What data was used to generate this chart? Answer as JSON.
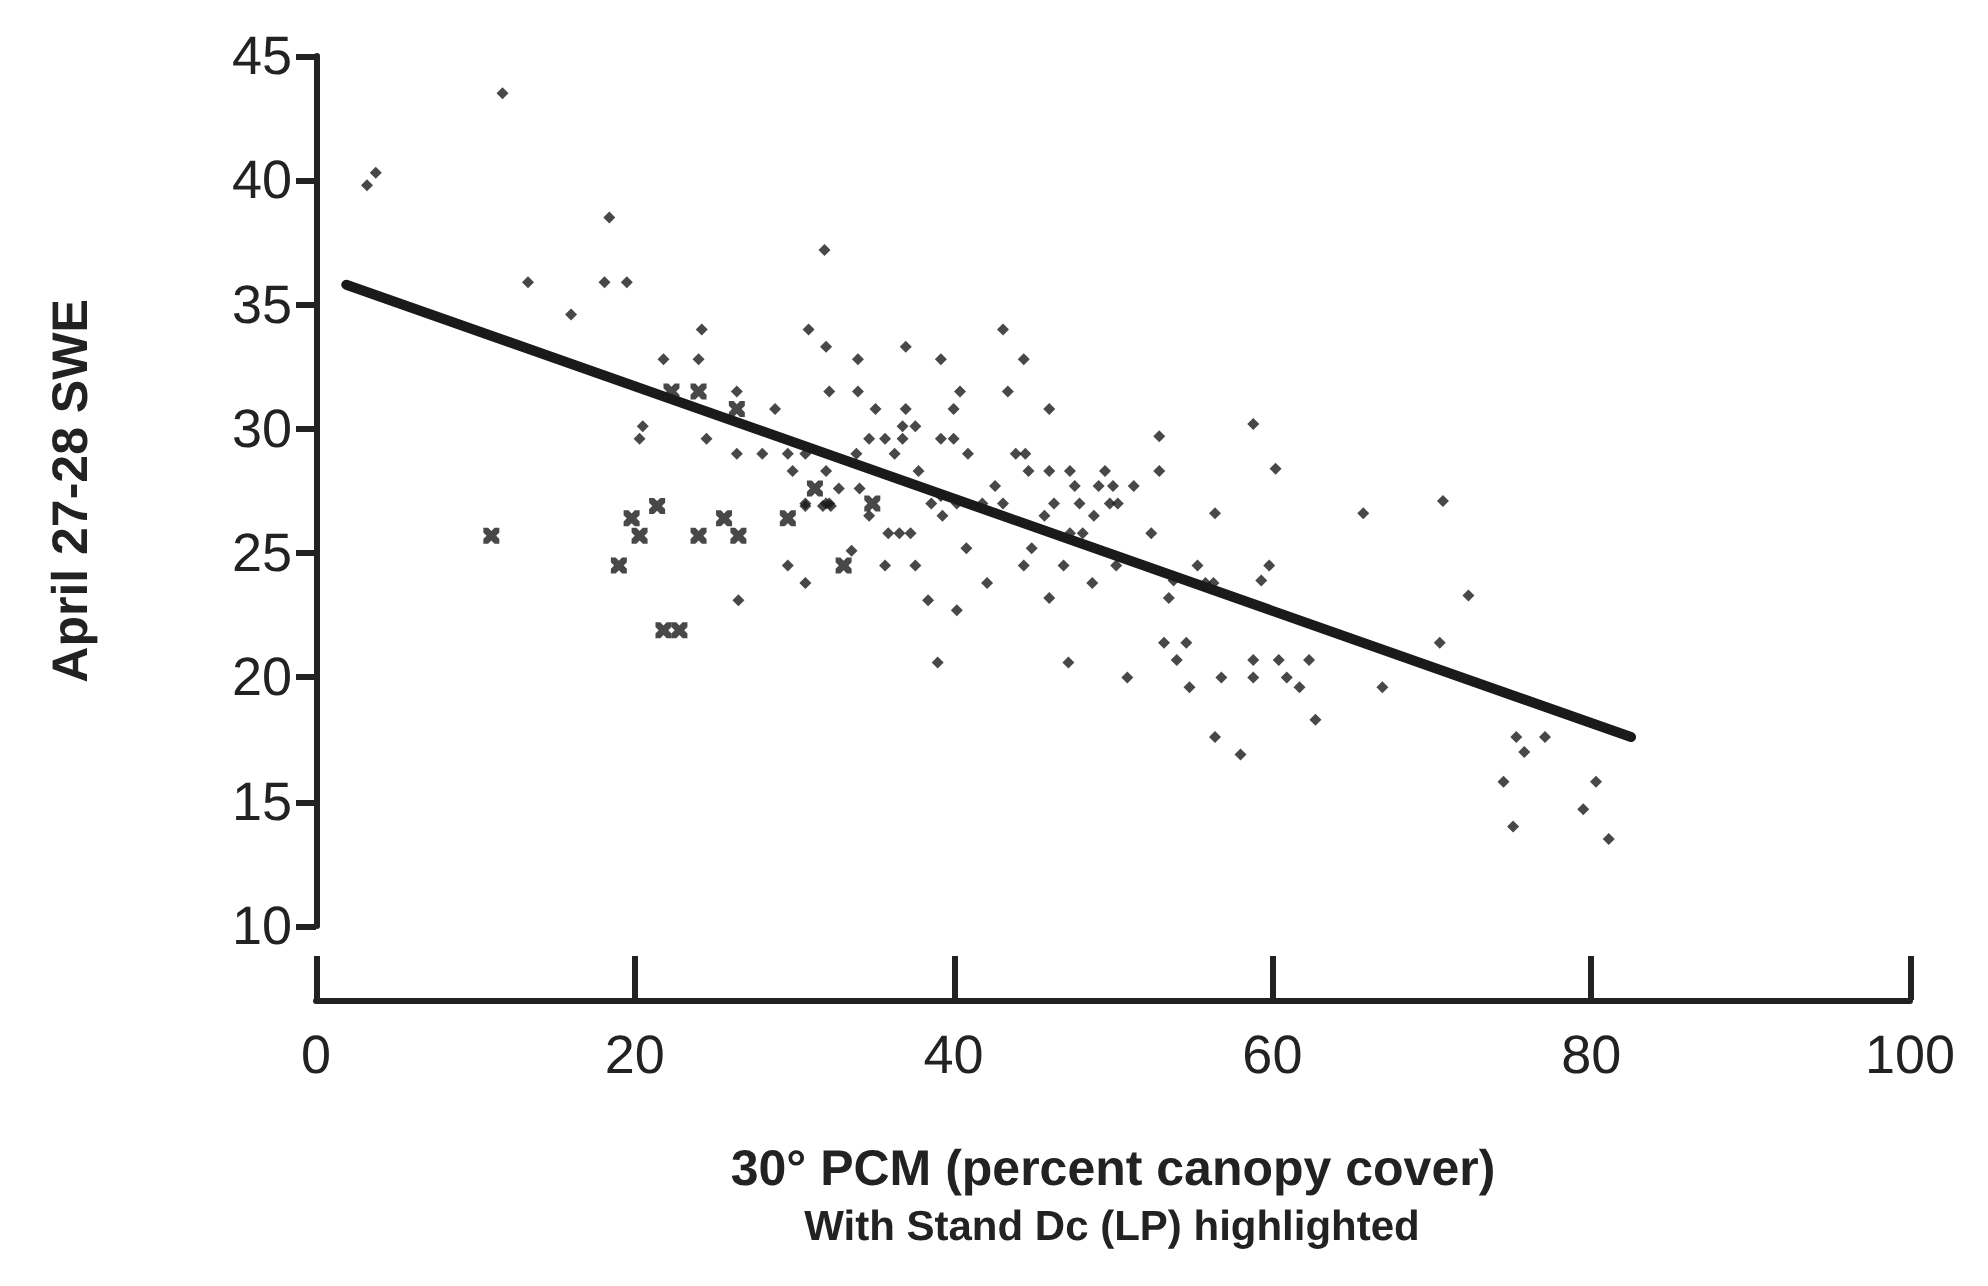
{
  "chart_data": {
    "type": "scatter",
    "xlabel": "30° PCM (percent canopy cover)",
    "ylabel": "April 27-28 SWE",
    "annotations": [
      "With Stand Dc (LP) highlighted"
    ],
    "xlim": [
      0,
      100
    ],
    "xticks": [
      0,
      20,
      40,
      60,
      80,
      100
    ],
    "ylim": [
      10,
      45
    ],
    "yticks": [
      10,
      15,
      20,
      25,
      30,
      35,
      40,
      45
    ],
    "grid": false,
    "series": [
      {
        "marker": "diamond",
        "color": "#1a1a1a",
        "x": [
          11.7,
          3.2,
          3.75,
          18.4,
          13.3,
          18.1,
          19.5,
          16.0,
          31.9,
          24.2,
          21.8,
          24.0,
          30.9,
          32.0,
          34.0,
          32.2,
          34.0,
          28.8,
          20.5,
          20.3,
          24.5,
          26.4,
          28.0,
          29.6,
          29.9,
          26.4,
          26.5,
          29.6,
          30.7,
          33.6,
          30.7,
          31.8,
          32.3,
          32.0,
          32.8,
          34.1,
          37.0,
          39.2,
          43.1,
          44.4,
          43.4,
          40.4,
          35.1,
          37.0,
          40.0,
          46.0,
          36.8,
          37.6,
          34.7,
          35.7,
          36.8,
          39.2,
          40.0,
          33.9,
          36.3,
          40.9,
          43.9,
          44.5,
          30.7,
          37.8,
          44.7,
          46.0,
          47.3,
          49.5,
          52.9,
          52.9,
          58.8,
          60.2,
          42.6,
          47.6,
          49.1,
          50.0,
          51.3,
          30.7,
          32.0,
          32.2,
          38.6,
          39.2,
          40.2,
          41.8,
          43.1,
          46.3,
          47.9,
          49.8,
          50.3,
          34.7,
          39.3,
          45.7,
          48.8,
          56.4,
          35.9,
          36.6,
          37.3,
          47.3,
          48.1,
          52.4,
          40.8,
          44.9,
          35.7,
          37.6,
          44.4,
          46.9,
          50.2,
          55.3,
          59.8,
          42.1,
          48.7,
          53.8,
          55.8,
          56.3,
          59.3,
          38.4,
          46.0,
          53.5,
          40.2,
          53.2,
          54.6,
          54.0,
          39.0,
          47.2,
          50.9,
          54.8,
          56.8,
          58.8,
          58.8,
          60.4,
          62.3,
          60.9,
          61.7,
          62.7,
          65.7,
          70.7,
          72.3,
          70.5,
          66.9,
          56.4,
          58.0,
          75.3,
          77.1,
          75.8,
          74.5,
          80.3,
          79.5,
          75.1,
          81.1
        ],
        "values": [
          43.5,
          39.8,
          40.3,
          38.5,
          35.9,
          35.9,
          35.9,
          34.6,
          37.2,
          34.0,
          32.8,
          32.8,
          34.0,
          33.3,
          32.8,
          31.5,
          31.5,
          30.8,
          30.1,
          29.6,
          29.6,
          29.0,
          29.0,
          29.0,
          28.3,
          31.5,
          23.1,
          24.5,
          23.8,
          25.1,
          26.9,
          26.9,
          26.9,
          28.3,
          27.6,
          27.6,
          33.3,
          32.8,
          34.0,
          32.8,
          31.5,
          31.5,
          30.8,
          30.8,
          30.8,
          30.8,
          30.1,
          30.1,
          29.6,
          29.6,
          29.6,
          29.6,
          29.6,
          29.0,
          29.0,
          29.0,
          29.0,
          29.0,
          29.0,
          28.3,
          28.3,
          28.3,
          28.3,
          28.3,
          29.7,
          28.3,
          30.2,
          28.4,
          27.7,
          27.7,
          27.7,
          27.7,
          27.7,
          27.0,
          27.0,
          27.0,
          27.0,
          27.3,
          27.0,
          27.0,
          27.0,
          27.0,
          27.0,
          27.0,
          27.0,
          26.5,
          26.5,
          26.5,
          26.5,
          26.6,
          25.8,
          25.8,
          25.8,
          25.8,
          25.8,
          25.8,
          25.2,
          25.2,
          24.5,
          24.5,
          24.5,
          24.5,
          24.5,
          24.5,
          24.5,
          23.8,
          23.8,
          23.9,
          23.8,
          23.8,
          23.9,
          23.1,
          23.2,
          23.2,
          22.7,
          21.4,
          21.4,
          20.7,
          20.6,
          20.6,
          20.0,
          19.6,
          20.0,
          20.7,
          20.0,
          20.7,
          20.7,
          20.0,
          19.6,
          18.3,
          26.6,
          27.1,
          23.3,
          21.4,
          19.6,
          17.6,
          16.9,
          17.6,
          17.6,
          17.0,
          15.8,
          15.8,
          14.7,
          14.0,
          13.5
        ]
      },
      {
        "marker": "cross",
        "color": "#1a1a1a",
        "x": [
          11.0,
          19.8,
          20.3,
          21.4,
          19.0,
          24.0,
          25.6,
          26.5,
          29.6,
          31.3,
          33.1,
          21.8,
          22.8,
          22.3,
          24.0,
          26.4,
          34.9
        ],
        "values": [
          25.7,
          26.4,
          25.7,
          26.9,
          24.5,
          25.7,
          26.4,
          25.7,
          26.4,
          27.6,
          24.5,
          21.9,
          21.9,
          31.5,
          31.5,
          30.8,
          27.0
        ]
      },
      {
        "type": "line",
        "marker": "none",
        "color": "#1a1a1a",
        "x": [
          1.9,
          82.5
        ],
        "values": [
          35.8,
          17.6
        ]
      }
    ]
  }
}
